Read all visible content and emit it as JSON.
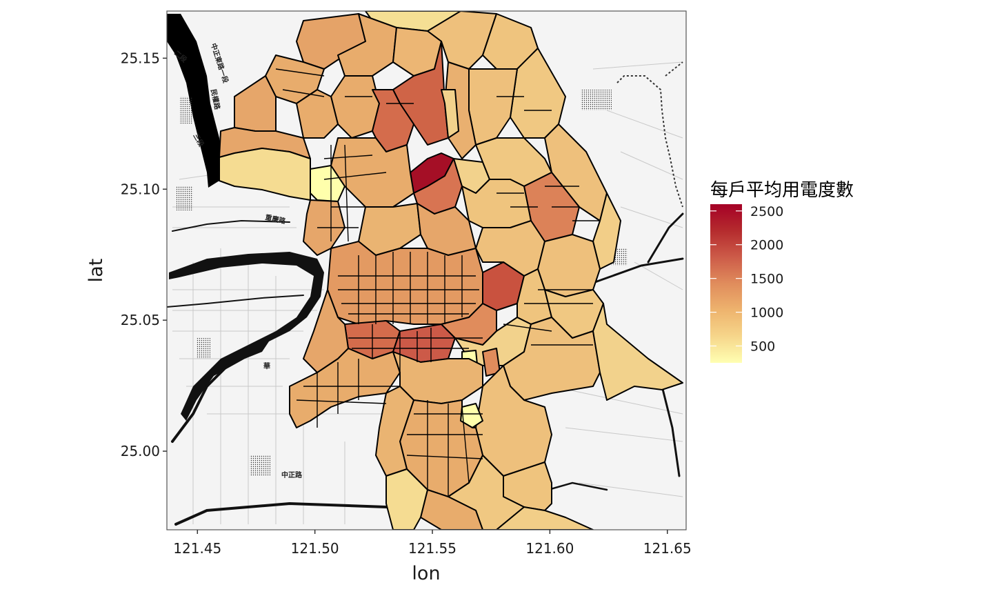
{
  "chart_data": {
    "type": "choropleth-map",
    "xlabel": "lon",
    "ylabel": "lat",
    "xlim": [
      121.437,
      121.658
    ],
    "ylim": [
      24.97,
      25.168
    ],
    "x_ticks": [
      121.45,
      121.5,
      121.55,
      121.6,
      121.65
    ],
    "y_ticks": [
      25.0,
      25.05,
      25.1,
      25.15
    ],
    "x_tick_labels": [
      "121.45",
      "121.50",
      "121.55",
      "121.60",
      "121.65"
    ],
    "y_tick_labels": [
      "25.00",
      "25.05",
      "25.10",
      "25.15"
    ],
    "legend": {
      "title": "每戶平均用電度數",
      "range": [
        250,
        2600
      ],
      "breaks": [
        500,
        1000,
        1500,
        2000,
        2500
      ],
      "labels": [
        "500",
        "1000",
        "1500",
        "2000",
        "2500"
      ],
      "colors": [
        "#ffffb2",
        "#f6d58a",
        "#eeb46e",
        "#e08c5c",
        "#cc5a48",
        "#b52c2e",
        "#a50026"
      ],
      "placement": "right"
    },
    "map_labels": [
      "中正東路一段",
      "民權路",
      "二段",
      "三段",
      "重慶路",
      "華",
      "中正路"
    ]
  }
}
